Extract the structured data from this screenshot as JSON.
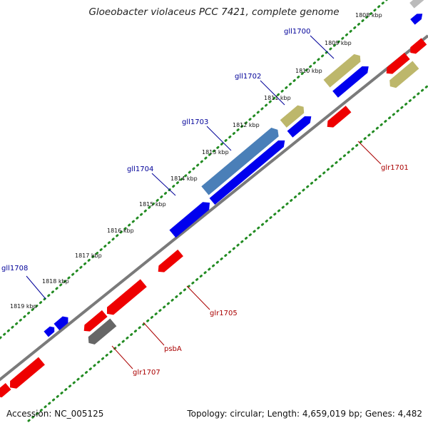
{
  "title": "Gloeobacter violaceus PCC 7421, complete genome",
  "footer": {
    "accession": "Accession: NC_005125",
    "summary": "Topology: circular; Length: 4,659,019 bp; Genes: 4,482"
  },
  "colors": {
    "backbone": "#777777",
    "tick_dots": "#228b22",
    "forward_gene": "#0000ee",
    "reverse_gene": "#ee0000",
    "rna_gene": "#bdb76b",
    "highlight_gene": "#4682b4",
    "pseudo_gene": "#666666",
    "forward_label": "#000099",
    "reverse_label": "#aa0000"
  },
  "ticks": [
    "1808 kbp",
    "1809 kbp",
    "1810 kbp",
    "1811 kbp",
    "1812 kbp",
    "1813 kbp",
    "1814 kbp",
    "1815 kbp",
    "1816 kbp",
    "1817 kbp",
    "1818 kbp",
    "1819 kbp"
  ],
  "gene_labels": {
    "gll1700": "gll1700",
    "gll1702": "gll1702",
    "gll1703": "gll1703",
    "gll1704": "gll1704",
    "gll1708": "gll1708",
    "glr1701": "glr1701",
    "glr1705": "glr1705",
    "psbA": "psbA",
    "glr1707": "glr1707"
  }
}
